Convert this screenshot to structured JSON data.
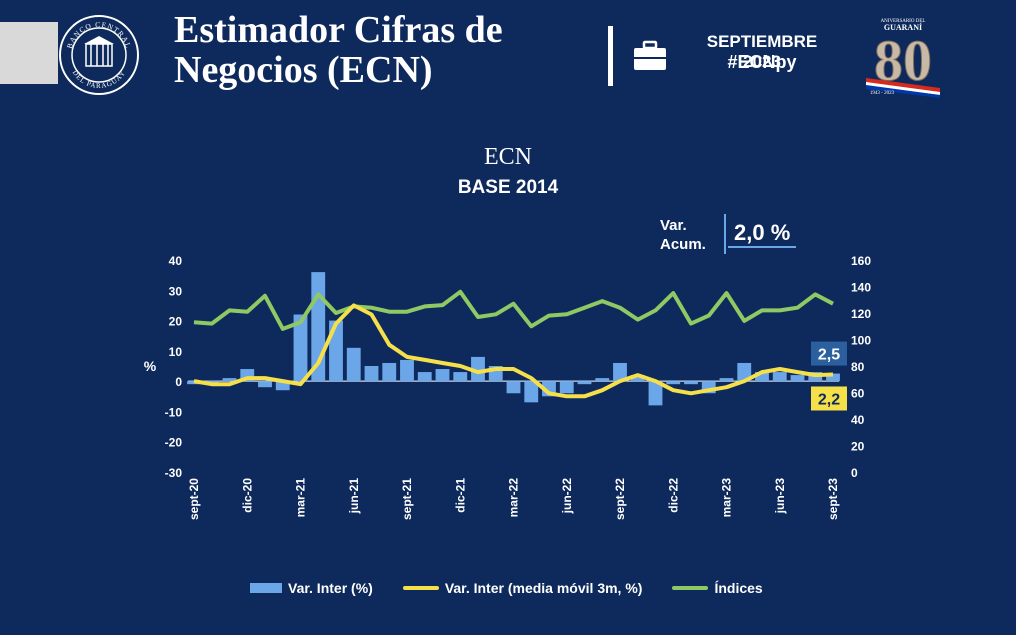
{
  "header": {
    "title_line1": "Estimador Cifras de",
    "title_line2": "Negocios (ECN)",
    "period": "SEPTIEMBRE 2023",
    "hashtag": "#ECNpy",
    "bank_name_top": "BANCO CENTRAL",
    "bank_name_bottom": "DEL PARAGUAY",
    "anniv_text_top": "ANIVERSARIO DEL",
    "anniv_text_name": "GUARANÍ",
    "anniv_number": "80",
    "anniv_years": "1943 - 2023"
  },
  "accumulated": {
    "label_line1": "Var.",
    "label_line2": "Acum.",
    "value": "2,0 %"
  },
  "colors": {
    "background": "#0e2a5c",
    "bars": "#6aa6e8",
    "moving_avg": "#f6e04a",
    "index": "#8fc964"
  },
  "chart_data": {
    "type": "bar",
    "title": "ECN",
    "subtitle": "BASE 2014",
    "ylabel": "%",
    "ylim": [
      -30,
      40
    ],
    "y_ticks": [
      "40",
      "30",
      "20",
      "10",
      "0",
      "-10",
      "-20",
      "-30"
    ],
    "y2lim": [
      0,
      160
    ],
    "y2_ticks": [
      "160",
      "140",
      "120",
      "100",
      "80",
      "60",
      "40",
      "20",
      "0"
    ],
    "x_tick_labels": [
      "sept-20",
      "dic-20",
      "mar-21",
      "jun-21",
      "sept-21",
      "dic-21",
      "mar-22",
      "jun-22",
      "sept-22",
      "dic-22",
      "mar-23",
      "jun-23",
      "sept-23"
    ],
    "x_tick_indices": [
      0,
      3,
      6,
      9,
      12,
      15,
      18,
      21,
      24,
      27,
      30,
      33,
      36
    ],
    "categories": [
      "sept-20",
      "oct-20",
      "nov-20",
      "dic-20",
      "ene-21",
      "feb-21",
      "mar-21",
      "abr-21",
      "may-21",
      "jun-21",
      "jul-21",
      "ago-21",
      "sept-21",
      "oct-21",
      "nov-21",
      "dic-21",
      "ene-22",
      "feb-22",
      "mar-22",
      "abr-22",
      "may-22",
      "jun-22",
      "jul-22",
      "ago-22",
      "sept-22",
      "oct-22",
      "nov-22",
      "dic-22",
      "ene-23",
      "feb-23",
      "mar-23",
      "abr-23",
      "may-23",
      "jun-23",
      "jul-23",
      "ago-23",
      "sept-23"
    ],
    "series": [
      {
        "name": "Var. Inter (%)",
        "type": "bar",
        "axis": "left",
        "values": [
          -1,
          -1,
          1,
          4,
          -2,
          -3,
          22,
          36,
          20,
          11,
          5,
          6,
          7,
          3,
          4,
          3,
          8,
          5,
          -4,
          -7,
          -5,
          -4,
          -1,
          1,
          6,
          2,
          -8,
          -1,
          -1,
          -4,
          1,
          6,
          3,
          3,
          2,
          3,
          2.5
        ]
      },
      {
        "name": "Var. Inter (media móvil 3m, %)",
        "type": "line",
        "axis": "left",
        "values": [
          0,
          -1,
          -1,
          1,
          1,
          0,
          -1,
          6,
          19,
          25,
          22,
          12,
          8,
          7,
          6,
          5,
          3,
          4,
          4,
          1,
          -4,
          -5,
          -5,
          -3,
          0,
          2,
          0,
          -3,
          -4,
          -3,
          -2,
          0,
          3,
          4,
          3,
          2,
          2.2
        ]
      },
      {
        "name": "Índices",
        "type": "line",
        "axis": "right",
        "values": [
          113,
          112,
          122,
          121,
          133,
          108,
          113,
          134,
          120,
          125,
          124,
          121,
          121,
          125,
          126,
          136,
          117,
          119,
          127,
          110,
          118,
          119,
          124,
          129,
          124,
          115,
          122,
          135,
          112,
          118,
          135,
          114,
          122,
          122,
          124,
          134,
          127
        ]
      }
    ],
    "last_bar_label": "2,5",
    "last_line_label": "2,2",
    "legend": [
      "Var. Inter (%)",
      "Var. Inter (media móvil 3m, %)",
      "Índices"
    ],
    "legend_position": "bottom"
  }
}
